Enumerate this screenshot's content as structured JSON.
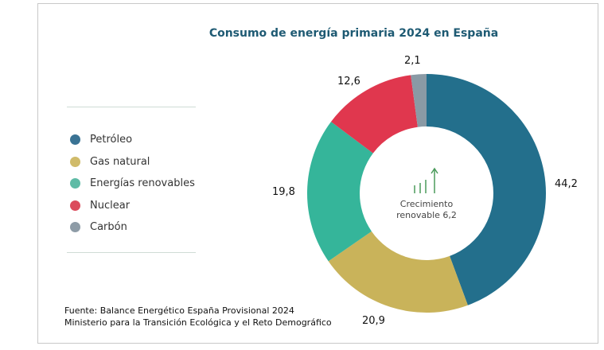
{
  "chart_data": {
    "type": "pie",
    "donut": true,
    "title": "Consumo de energía primaria 2024 en España",
    "categories": [
      "Petróleo",
      "Gas natural",
      "Energías renovables",
      "Nuclear",
      "Carbón"
    ],
    "values": [
      44.2,
      20.9,
      19.8,
      12.6,
      2.1
    ],
    "value_labels": [
      "44,2",
      "20,9",
      "19,8",
      "12,6",
      "2,1"
    ],
    "colors": [
      "#236f8c",
      "#c9b35a",
      "#35b59a",
      "#e0374e",
      "#8a9aa5"
    ],
    "legend_position": "left",
    "center_text": [
      "Crecimiento",
      "renovable 6,2"
    ],
    "center_icon": "growth-bars-arrow-icon"
  },
  "source": {
    "line1": "Fuente: Balance Energético España Provisional 2024",
    "line2": "Ministerio para la Transición Ecológica y el Reto Demográfico"
  }
}
